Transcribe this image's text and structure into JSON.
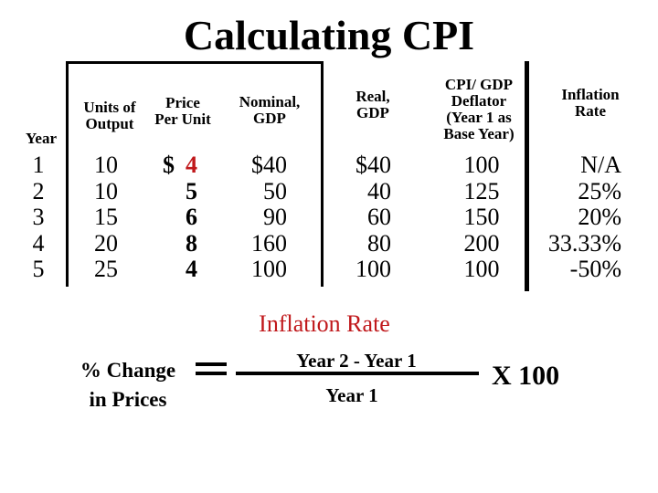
{
  "title": "Calculating CPI",
  "headers": {
    "year": "Year",
    "units_line1": "Units of",
    "units_line2": "Output",
    "price_line1": "Price",
    "price_line2": "Per Unit",
    "nominal_line1": "Nominal,",
    "nominal_line2": "GDP",
    "real_line1": "Real,",
    "real_line2": "GDP",
    "cpi_line1": "CPI/ GDP",
    "cpi_line2": "Deflator",
    "cpi_line3": "(Year 1 as",
    "cpi_line4": "Base Year)",
    "inflation_line1": "Inflation",
    "inflation_line2": "Rate"
  },
  "rows": [
    {
      "year": "1",
      "units": "10",
      "price": "4",
      "nominal": "$40",
      "real": "$40",
      "cpi": "100",
      "inflation": "N/A"
    },
    {
      "year": "2",
      "units": "10",
      "price": "5",
      "nominal": "50",
      "real": "40",
      "cpi": "125",
      "inflation": "25%"
    },
    {
      "year": "3",
      "units": "15",
      "price": "6",
      "nominal": "90",
      "real": "60",
      "cpi": "150",
      "inflation": "20%"
    },
    {
      "year": "4",
      "units": "20",
      "price": "8",
      "nominal": "160",
      "real": "80",
      "cpi": "200",
      "inflation": "33.33%"
    },
    {
      "year": "5",
      "units": "25",
      "price": "4",
      "nominal": "100",
      "real": "100",
      "cpi": "100",
      "inflation": "-50%"
    }
  ],
  "price_currency": "$",
  "formula": {
    "heading": "Inflation Rate",
    "lhs_line1": "% Change",
    "lhs_line2": "in Prices",
    "equals": "=",
    "numerator": "Year 2 - Year 1",
    "denominator": "Year 1",
    "multiplier": "X 100"
  },
  "colors": {
    "accent": "#c0181b",
    "text": "#000000"
  }
}
